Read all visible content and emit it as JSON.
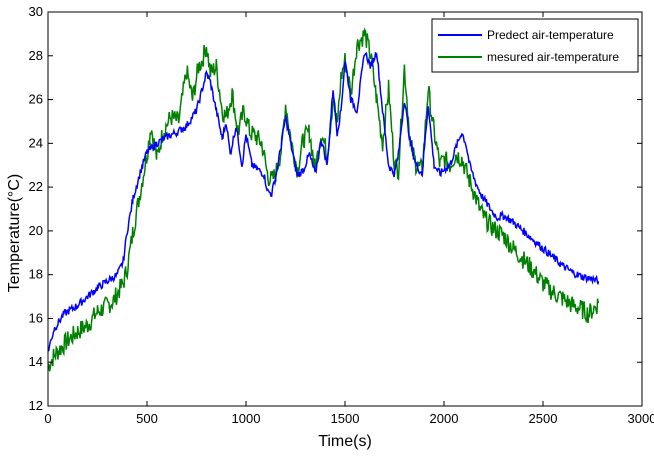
{
  "chart_data": {
    "type": "line",
    "title": "",
    "xlabel": "Time(s)",
    "ylabel": "Temperature(°C)",
    "xlim": [
      0,
      3000
    ],
    "ylim": [
      12,
      30
    ],
    "xticks": [
      0,
      500,
      1000,
      1500,
      2000,
      2500,
      3000
    ],
    "yticks": [
      12,
      14,
      16,
      18,
      20,
      22,
      24,
      26,
      28,
      30
    ],
    "grid": false,
    "legend_position": "top-right",
    "series": [
      {
        "name": "Predect air-temperature",
        "color": "#0000ff",
        "x": [
          0,
          30,
          80,
          150,
          200,
          250,
          300,
          350,
          380,
          400,
          430,
          470,
          500,
          550,
          600,
          650,
          700,
          750,
          780,
          800,
          820,
          850,
          880,
          900,
          920,
          950,
          980,
          1000,
          1030,
          1060,
          1090,
          1110,
          1130,
          1150,
          1180,
          1200,
          1230,
          1260,
          1290,
          1320,
          1350,
          1380,
          1410,
          1440,
          1460,
          1480,
          1500,
          1530,
          1560,
          1600,
          1630,
          1660,
          1690,
          1720,
          1750,
          1770,
          1800,
          1830,
          1860,
          1890,
          1920,
          1950,
          1980,
          2000,
          2030,
          2060,
          2090,
          2110,
          2130,
          2160,
          2190,
          2220,
          2250,
          2270,
          2300,
          2350,
          2400,
          2450,
          2500,
          2550,
          2600,
          2650,
          2700,
          2750,
          2780
        ],
        "y": [
          14.5,
          15.5,
          16.2,
          16.6,
          17.0,
          17.4,
          17.7,
          18.0,
          18.6,
          20.0,
          21.5,
          22.8,
          23.6,
          24.0,
          24.3,
          24.5,
          24.8,
          25.5,
          26.5,
          27.2,
          26.8,
          25.5,
          24.2,
          25.0,
          23.5,
          24.8,
          23.0,
          24.4,
          23.0,
          22.8,
          22.6,
          21.8,
          21.7,
          22.5,
          24.0,
          25.2,
          23.8,
          22.5,
          22.8,
          23.5,
          22.6,
          24.2,
          23.0,
          26.5,
          24.5,
          25.5,
          27.8,
          26.0,
          25.5,
          28.2,
          27.5,
          28.2,
          25.5,
          23.0,
          22.6,
          23.5,
          26.0,
          24.0,
          23.0,
          22.6,
          25.8,
          23.0,
          22.6,
          22.8,
          23.0,
          23.8,
          24.5,
          24.0,
          23.0,
          22.2,
          21.6,
          21.2,
          20.8,
          20.6,
          20.7,
          20.4,
          20.0,
          19.6,
          19.2,
          18.8,
          18.4,
          18.1,
          17.9,
          17.8,
          17.7
        ]
      },
      {
        "name": "mesured air-temperature",
        "color": "#008000",
        "x": [
          0,
          30,
          60,
          100,
          150,
          200,
          250,
          300,
          330,
          360,
          380,
          400,
          430,
          470,
          500,
          520,
          550,
          580,
          620,
          660,
          700,
          730,
          760,
          780,
          800,
          820,
          850,
          880,
          900,
          930,
          960,
          990,
          1020,
          1050,
          1080,
          1110,
          1130,
          1150,
          1180,
          1200,
          1230,
          1260,
          1290,
          1320,
          1350,
          1380,
          1410,
          1440,
          1460,
          1480,
          1500,
          1530,
          1560,
          1600,
          1630,
          1660,
          1690,
          1720,
          1750,
          1770,
          1800,
          1830,
          1860,
          1890,
          1920,
          1950,
          1980,
          2000,
          2030,
          2060,
          2090,
          2120,
          2150,
          2180,
          2210,
          2250,
          2300,
          2350,
          2400,
          2450,
          2500,
          2550,
          2600,
          2650,
          2700,
          2730,
          2760,
          2780
        ],
        "y": [
          13.8,
          14.3,
          14.6,
          15.0,
          15.4,
          15.7,
          16.3,
          16.6,
          16.8,
          17.3,
          17.6,
          18.3,
          20.0,
          22.0,
          23.5,
          24.8,
          23.3,
          24.5,
          25.2,
          25.0,
          27.3,
          26.0,
          27.5,
          27.8,
          28.5,
          27.2,
          27.5,
          25.5,
          25.2,
          26.3,
          24.5,
          25.5,
          24.5,
          24.3,
          24.0,
          22.5,
          22.3,
          22.6,
          23.8,
          25.8,
          24.0,
          22.8,
          24.2,
          24.5,
          22.8,
          24.5,
          23.5,
          26.0,
          24.8,
          27.0,
          27.8,
          26.3,
          28.5,
          29.0,
          28.0,
          26.0,
          24.0,
          26.5,
          23.0,
          22.8,
          27.5,
          24.0,
          23.0,
          22.8,
          26.5,
          24.5,
          23.0,
          23.3,
          23.0,
          23.5,
          23.3,
          22.5,
          21.8,
          21.0,
          20.5,
          20.1,
          19.8,
          19.2,
          18.7,
          18.2,
          17.6,
          17.2,
          16.9,
          16.6,
          16.4,
          16.2,
          16.5,
          16.7
        ]
      }
    ]
  }
}
